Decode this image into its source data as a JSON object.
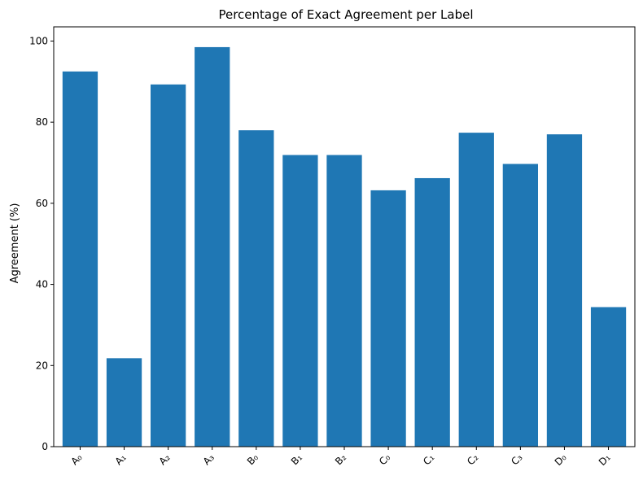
{
  "chart_data": {
    "type": "bar",
    "title": "Percentage of Exact Agreement per Label",
    "xlabel": "",
    "ylabel": "Agreement (%)",
    "categories": [
      "A₀",
      "A₁",
      "A₂",
      "A₃",
      "B₀",
      "B₁",
      "B₂",
      "C₀",
      "C₁",
      "C₂",
      "C₃",
      "D₀",
      "D₁"
    ],
    "values": [
      92.5,
      21.8,
      89.3,
      98.5,
      78.0,
      71.9,
      71.9,
      63.2,
      66.2,
      77.4,
      69.7,
      77.0,
      34.4
    ],
    "ylim": [
      0,
      103.5
    ],
    "yticks": [
      0,
      20,
      40,
      60,
      80,
      100
    ],
    "bar_color": "#1f77b4",
    "grid": false,
    "xtick_rotation": -45
  }
}
